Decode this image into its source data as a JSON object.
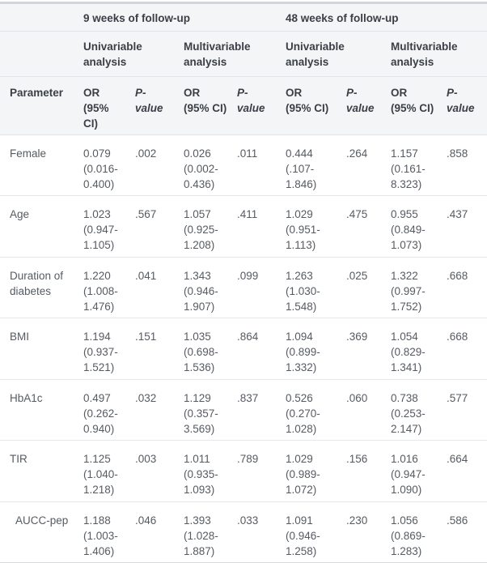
{
  "table": {
    "followup_groups": [
      "9 weeks of follow-up",
      "48 weeks of follow-up"
    ],
    "analysis_headers": [
      "Univariable analysis",
      "Multivariable analysis",
      "Univariable analysis",
      "Multivariable analysis"
    ],
    "column_headers": {
      "parameter": "Parameter",
      "or_ci": "OR (95% CI)",
      "p_value": "P-value"
    },
    "rows": [
      {
        "parameter": "Female",
        "indent": false,
        "cells": [
          {
            "or_ci": "0.079 (0.016-0.400)",
            "p": ".002"
          },
          {
            "or_ci": "0.026 (0.002-0.436)",
            "p": ".011"
          },
          {
            "or_ci": "0.444 (.107-1.846)",
            "p": ".264"
          },
          {
            "or_ci": "1.157 (0.161-8.323)",
            "p": ".858"
          }
        ]
      },
      {
        "parameter": "Age",
        "indent": false,
        "cells": [
          {
            "or_ci": "1.023 (0.947-1.105)",
            "p": ".567"
          },
          {
            "or_ci": "1.057 (0.925-1.208)",
            "p": ".411"
          },
          {
            "or_ci": "1.029 (0.951-1.113)",
            "p": ".475"
          },
          {
            "or_ci": "0.955 (0.849-1.073)",
            "p": ".437"
          }
        ]
      },
      {
        "parameter": "Duration of diabetes",
        "indent": false,
        "cells": [
          {
            "or_ci": "1.220 (1.008-1.476)",
            "p": ".041"
          },
          {
            "or_ci": "1.343 (0.946-1.907)",
            "p": ".099"
          },
          {
            "or_ci": "1.263 (1.030-1.548)",
            "p": ".025"
          },
          {
            "or_ci": "1.322 (0.997-1.752)",
            "p": ".668"
          }
        ]
      },
      {
        "parameter": "BMI",
        "indent": false,
        "cells": [
          {
            "or_ci": "1.194 (0.937-1.521)",
            "p": ".151"
          },
          {
            "or_ci": "1.035 (0.698-1.536)",
            "p": ".864"
          },
          {
            "or_ci": "1.094 (0.899-1.332)",
            "p": ".369"
          },
          {
            "or_ci": "1.054 (0.829-1.341)",
            "p": ".668"
          }
        ]
      },
      {
        "parameter": "HbA1c",
        "indent": false,
        "cells": [
          {
            "or_ci": "0.497 (0.262-0.940)",
            "p": ".032"
          },
          {
            "or_ci": "1.129 (0.357-3.569)",
            "p": ".837"
          },
          {
            "or_ci": "0.526 (0.270-1.028)",
            "p": ".060"
          },
          {
            "or_ci": "0.738 (0.253-2.147)",
            "p": ".577"
          }
        ]
      },
      {
        "parameter": "TIR",
        "indent": false,
        "cells": [
          {
            "or_ci": "1.125 (1.040-1.218)",
            "p": ".003"
          },
          {
            "or_ci": "1.011 (0.935-1.093)",
            "p": ".789"
          },
          {
            "or_ci": "1.029 (0.989-1.072)",
            "p": ".156"
          },
          {
            "or_ci": "1.016 (0.947-1.090)",
            "p": ".664"
          }
        ]
      },
      {
        "parameter": "AUCC-pep",
        "indent": true,
        "cells": [
          {
            "or_ci": "1.188 (1.003-1.406)",
            "p": ".046"
          },
          {
            "or_ci": "1.393 (1.028-1.887)",
            "p": ".033"
          },
          {
            "or_ci": "1.091 (0.946-1.258)",
            "p": ".230"
          },
          {
            "or_ci": "1.056 (0.869-1.283)",
            "p": ".586"
          }
        ]
      }
    ],
    "colors": {
      "header_bg": "#f4f5f7",
      "top_border": "#d2d4df",
      "row_divider": "#e5e7ea",
      "header_divider": "#e2e4e9",
      "bottom_border": "#d9dbde",
      "header_text": "#3a3f46",
      "body_text": "#565b62"
    }
  }
}
